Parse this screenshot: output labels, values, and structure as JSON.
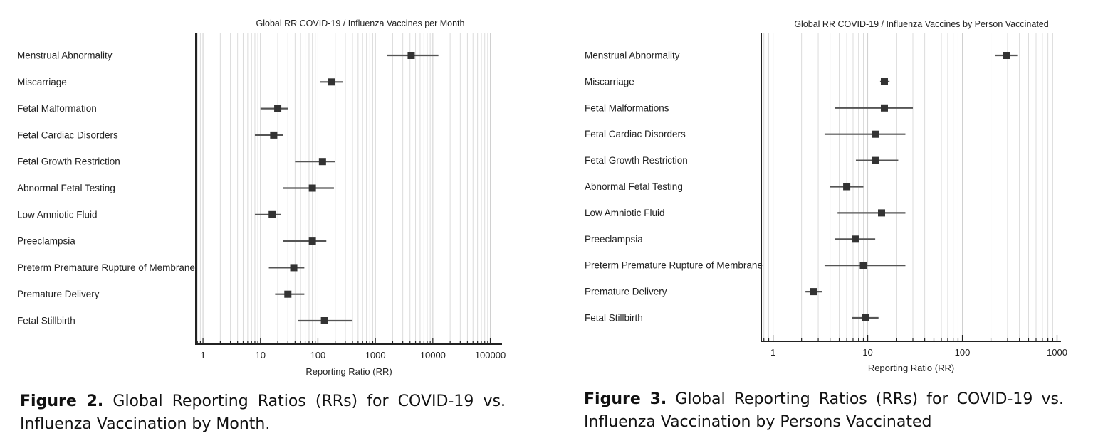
{
  "chart_data": [
    {
      "type": "forest",
      "title": "Global RR COVID-19 / Influenza Vaccines per Month",
      "xlabel": "Reporting Ratio (RR)",
      "x_scale": "log",
      "xlim": [
        0.75,
        160000
      ],
      "x_ticks": [
        1,
        10,
        100,
        1000,
        10000,
        100000
      ],
      "x_tick_labels": [
        "1",
        "10",
        "100",
        "1000",
        "10000",
        "100000"
      ],
      "grid": true,
      "categories": [
        "Menstrual Abnormality",
        "Miscarriage",
        "Fetal Malformation",
        "Fetal Cardiac Disorders",
        "Fetal Growth Restriction",
        "Abnormal Fetal Testing",
        "Low Amniotic Fluid",
        "Preeclampsia",
        "Preterm Premature Rupture of Membrane",
        "Premature Delivery",
        "Fetal Stillbirth"
      ],
      "values": [
        4200,
        170,
        20,
        17,
        120,
        80,
        16,
        80,
        38,
        30,
        130
      ],
      "ci_low": [
        1600,
        110,
        10,
        8,
        40,
        25,
        8,
        25,
        14,
        18,
        45
      ],
      "ci_high": [
        12500,
        270,
        30,
        25,
        200,
        190,
        23,
        140,
        58,
        58,
        400
      ],
      "caption_label": "Figure 2.",
      "caption_text": "Global Reporting Ratios (RRs) for COVID-19 vs. Influenza Vaccination by Month."
    },
    {
      "type": "forest",
      "title": "Global RR COVID-19 / Influenza Vaccines by Person Vaccinated",
      "xlabel": "Reporting Ratio (RR)",
      "x_scale": "log",
      "xlim": [
        0.75,
        1100
      ],
      "x_ticks": [
        1,
        10,
        100,
        1000
      ],
      "x_tick_labels": [
        "1",
        "10",
        "100",
        "1000"
      ],
      "grid": true,
      "categories": [
        "Menstrual Abnormality",
        "Miscarriage",
        "Fetal Malformations",
        "Fetal Cardiac Disorders",
        "Fetal Growth Restriction",
        "Abnormal Fetal Testing",
        "Low Amniotic Fluid",
        "Preeclampsia",
        "Preterm Premature Rupture of Membrane",
        "Premature Delivery",
        "Fetal Stillbirth"
      ],
      "values": [
        290,
        15,
        15,
        12,
        12,
        6,
        14,
        7.5,
        9,
        2.7,
        9.5
      ],
      "ci_low": [
        220,
        13.5,
        4.5,
        3.5,
        7.5,
        4,
        4.8,
        4.5,
        3.5,
        2.2,
        6.8
      ],
      "ci_high": [
        380,
        17,
        30,
        25,
        21,
        9,
        25,
        12,
        25,
        3.3,
        13
      ],
      "caption_label": "Figure 3.",
      "caption_text": "Global Reporting Ratios (RRs) for COVID-19 vs. Influenza Vaccination by Persons Vaccinated"
    }
  ]
}
